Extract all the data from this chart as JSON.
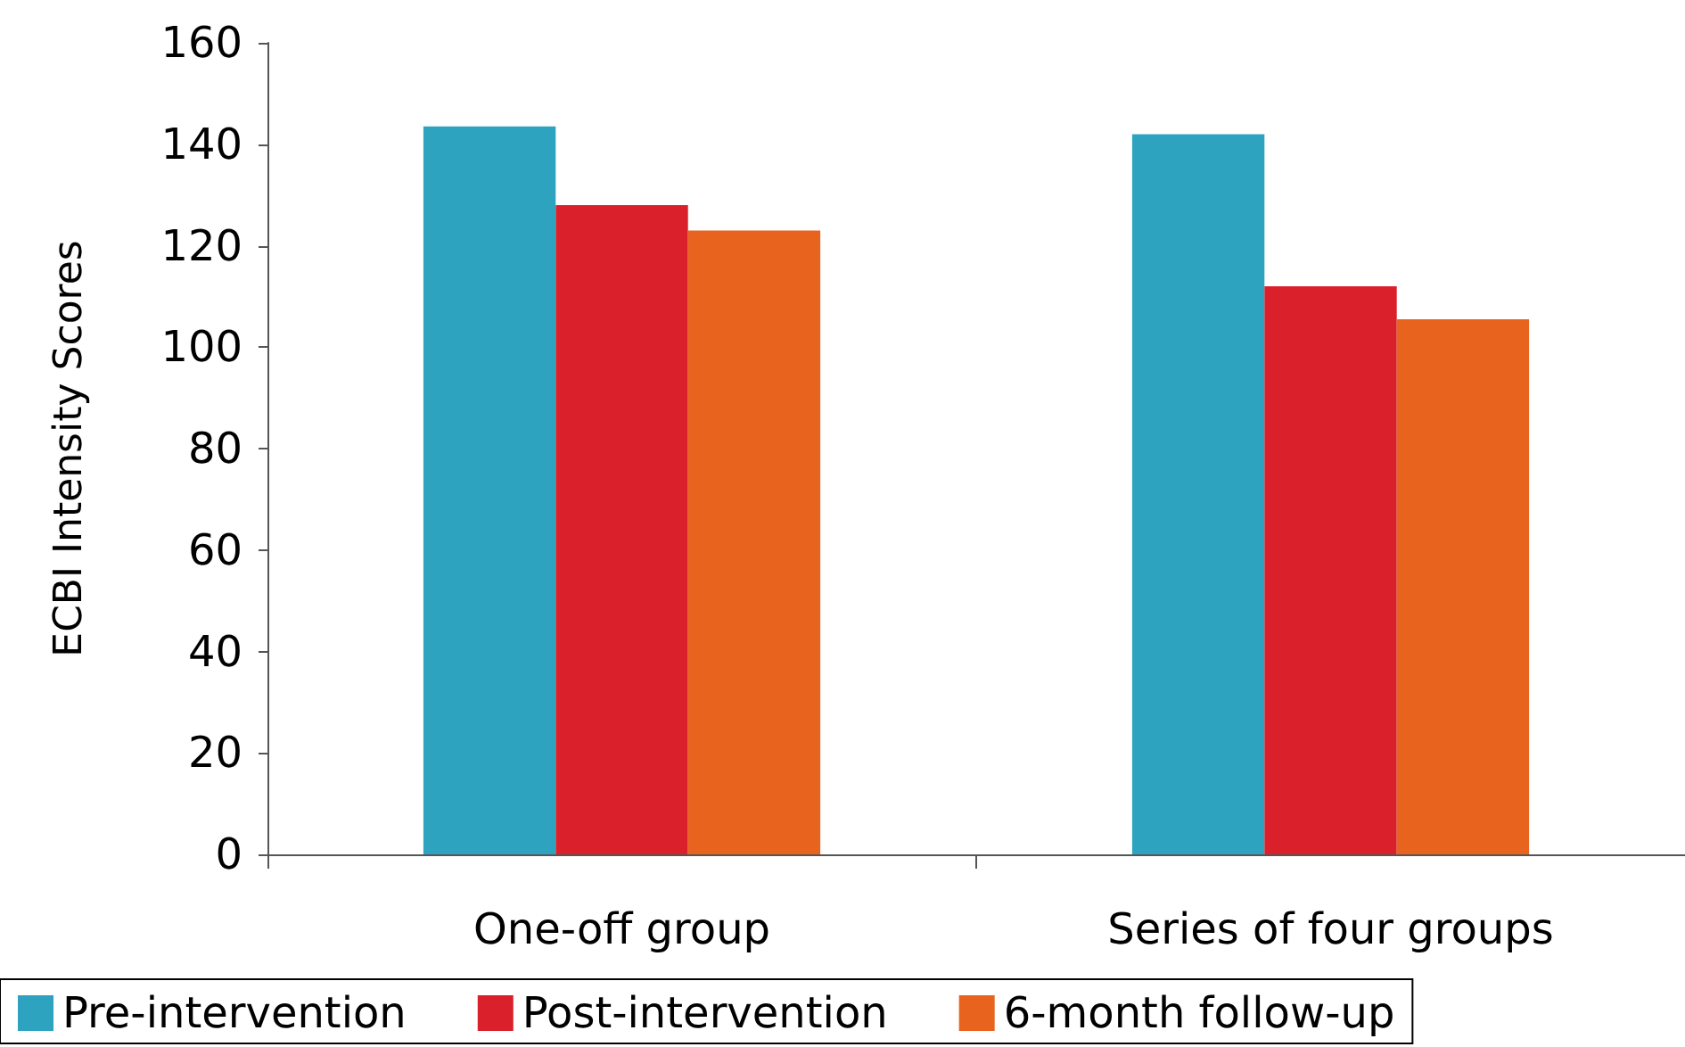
{
  "chart_data": {
    "type": "bar",
    "ylabel": "ECBI Intensity Scores",
    "categories": [
      "One-off group",
      "Series of four groups"
    ],
    "series": [
      {
        "name": "Pre-intervention",
        "color": "#2ea3c0",
        "values": [
          143.5,
          142
        ]
      },
      {
        "name": "Post-intervention",
        "color": "#da212b",
        "values": [
          128,
          112
        ]
      },
      {
        "name": "6-month follow-up",
        "color": "#e8641e",
        "values": [
          123,
          105.5
        ]
      }
    ],
    "ylim": [
      0,
      160
    ],
    "yticks": [
      0,
      20,
      40,
      60,
      80,
      100,
      120,
      140,
      160
    ],
    "grid": false,
    "legend": "bottom"
  }
}
